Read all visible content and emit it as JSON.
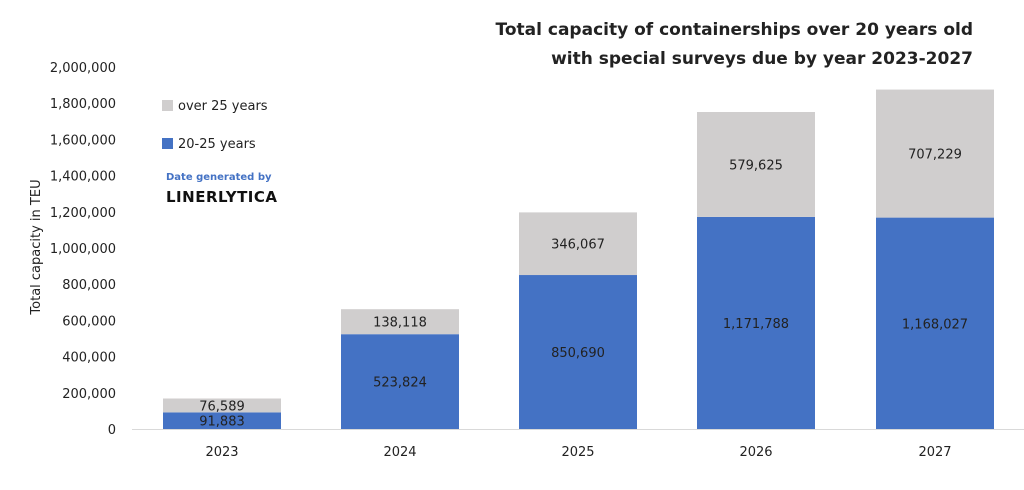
{
  "chart_data": {
    "type": "bar",
    "stacked": true,
    "title_lines": [
      "Total capacity of containerships over 20 years old",
      "with special surveys due by year 2023-2027"
    ],
    "xlabel": "",
    "ylabel": "Total capacity in TEU",
    "ylim": [
      0,
      2000000
    ],
    "yticks": [
      "0",
      "200,000",
      "400,000",
      "600,000",
      "800,000",
      "1,000,000",
      "1,200,000",
      "1,400,000",
      "1,600,000",
      "1,800,000",
      "2,000,000"
    ],
    "categories": [
      "2023",
      "2024",
      "2025",
      "2026",
      "2027"
    ],
    "series": [
      {
        "name": "20-25 years",
        "color": "#4472c4",
        "values": [
          91883,
          523824,
          850690,
          1171788,
          1168027
        ],
        "labels": [
          "91,883",
          "523,824",
          "850,690",
          "1,171,788",
          "1,168,027"
        ]
      },
      {
        "name": "over 25 years",
        "color": "#d0cece",
        "values": [
          76589,
          138118,
          346067,
          579625,
          707229
        ],
        "labels": [
          "76,589",
          "138,118",
          "346,067",
          "579,625",
          "707,229"
        ]
      }
    ],
    "legend_placement": "top-left",
    "grid": false
  },
  "legend": {
    "items": [
      "over 25 years",
      "20-25 years"
    ]
  },
  "credit": {
    "line1": "Date generated by",
    "line2": "LINERLYTICA"
  }
}
